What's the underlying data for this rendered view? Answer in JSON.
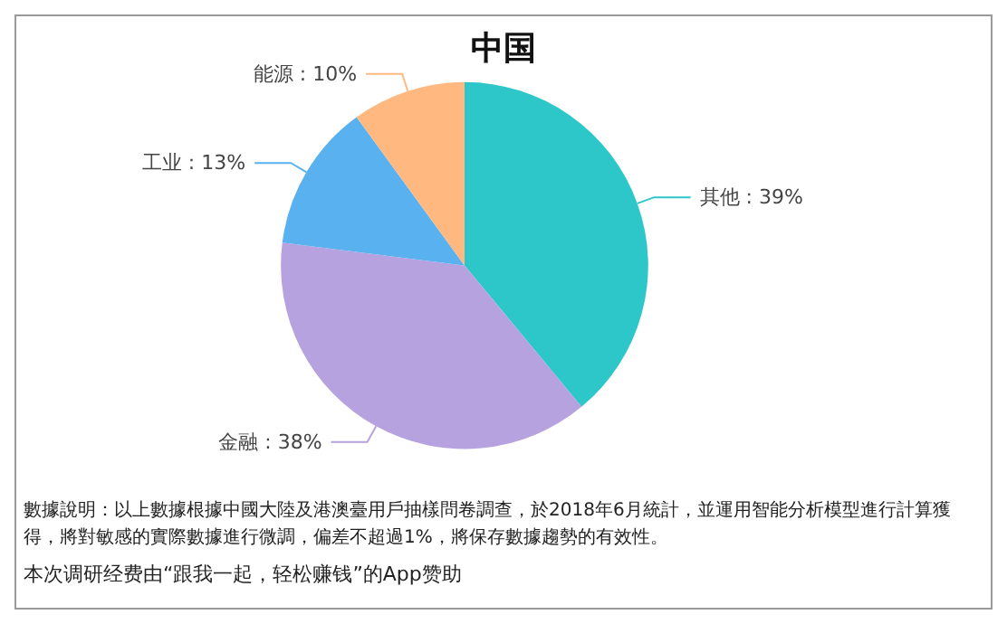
{
  "chart_data": {
    "type": "pie",
    "title": "中国",
    "categories": [
      "其他",
      "金融",
      "工业",
      "能源"
    ],
    "values": [
      39,
      38,
      13,
      10
    ],
    "value_labels": [
      ": 39%",
      ": 38%",
      ": 13%",
      ": 10%"
    ],
    "colors": [
      "#2ec7c9",
      "#b6a2de",
      "#5ab1ef",
      "#ffb980"
    ],
    "legend": false,
    "annotations": [
      "數據說明：以上數據根據中國大陸及港澳臺用戶抽樣問卷調查，於2018年6月統計，並運用智能分析模型進行計算獲得，將對敏感的實際數據進行微調，偏差不超過1%，將保存數據趨勢的有效性。",
      "本次调研经费由“跟我一起，轻松赚钱”的App赞助"
    ]
  }
}
